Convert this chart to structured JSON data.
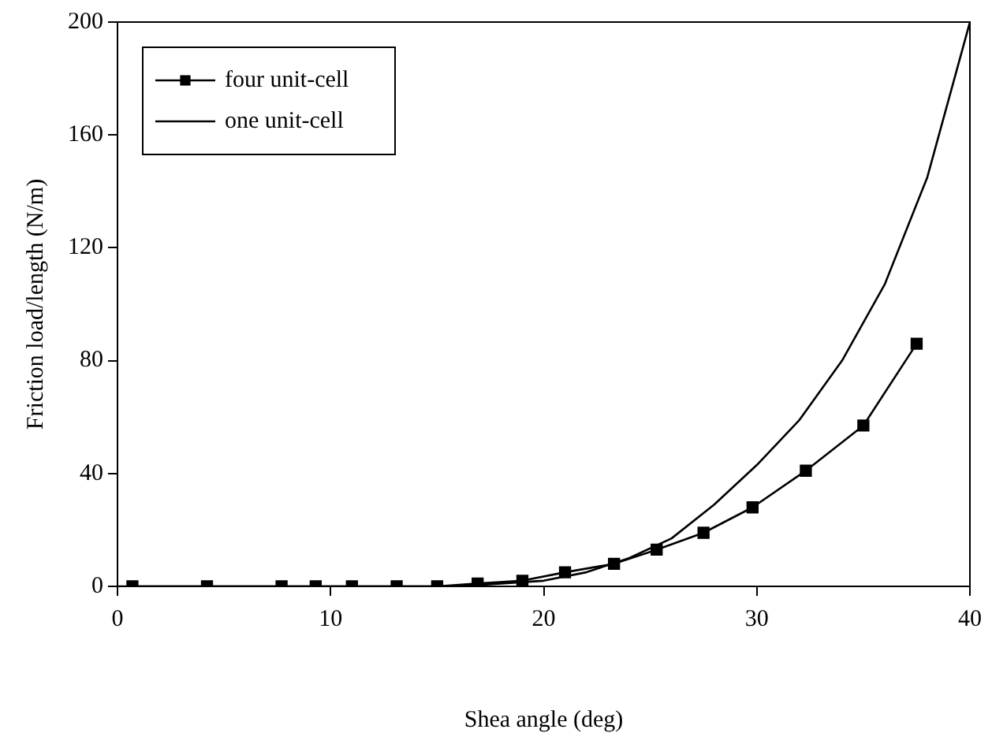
{
  "chart_data": {
    "type": "line",
    "xlabel": "Shea angle (deg)",
    "ylabel": "Friction load/length (N/m)",
    "xlim": [
      0,
      40
    ],
    "xticks": [
      0,
      10,
      20,
      30,
      40
    ],
    "ylim": [
      0,
      200
    ],
    "yticks": [
      0,
      40,
      80,
      120,
      160,
      200
    ],
    "grid": false,
    "legend": "top left",
    "line_style": "solid",
    "series": [
      {
        "name": "four unit-cell",
        "color": "#000000",
        "marker": "square",
        "x": [
          0.7,
          4.2,
          7.7,
          9.3,
          11.0,
          13.1,
          15.0,
          16.9,
          19.0,
          21.0,
          23.3,
          25.3,
          27.5,
          29.8,
          32.3,
          35.0,
          37.5
        ],
        "values": [
          0,
          0,
          0,
          0,
          0,
          0,
          0,
          1,
          2,
          5,
          8,
          13,
          19,
          28,
          41,
          57,
          86
        ]
      },
      {
        "name": "one unit-cell",
        "color": "#000000",
        "marker": "none",
        "x": [
          0,
          2,
          4,
          6,
          8,
          10,
          12,
          14,
          16,
          18,
          20,
          22,
          24,
          26,
          28,
          30,
          32,
          34,
          36,
          38,
          40
        ],
        "values": [
          0,
          0,
          0,
          0,
          0,
          0,
          0,
          0,
          0,
          1,
          2,
          5,
          10,
          17,
          29,
          43,
          59,
          80,
          107,
          145,
          200
        ]
      }
    ]
  }
}
